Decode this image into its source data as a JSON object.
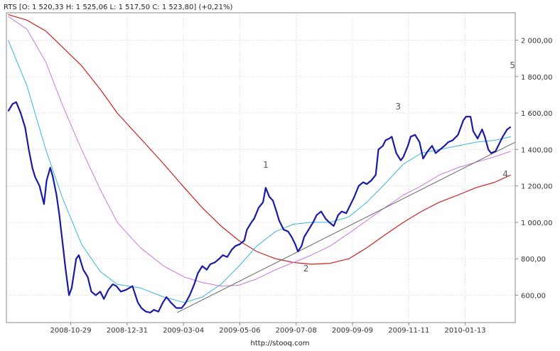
{
  "header": {
    "label": "RTS [O: 1 520,33  H: 1 525,06  L: 1 517,50  C: 1 523,80] (+0,21%)"
  },
  "footer": {
    "source": "http://stooq.com"
  },
  "chart_data": {
    "type": "line",
    "title": "",
    "xlabel": "",
    "ylabel": "",
    "ylim": [
      450,
      2150
    ],
    "xlim": [
      "2008-08-18",
      "2010-03-10"
    ],
    "y_axis_position": "right",
    "grid": true,
    "y_ticks": [
      600,
      800,
      1000,
      1200,
      1400,
      1600,
      1800,
      2000
    ],
    "y_tick_labels": [
      "600,00",
      "800,00",
      "1 000,00",
      "1 200,00",
      "1 400,00",
      "1 600,00",
      "1 800,00",
      "2 000,00"
    ],
    "x_ticks": [
      "2008-10-29",
      "2008-12-31",
      "2009-03-04",
      "2009-05-06",
      "2009-07-08",
      "2009-09-09",
      "2009-11-11",
      "2010-01-13"
    ],
    "colors": {
      "price": "#1a1aa8",
      "ma_fast": "#3ab4e0",
      "ma_mid": "#cc77dd",
      "ma_slow": "#cc2222",
      "trendline": "#666666"
    },
    "series": [
      {
        "id": "price",
        "points": [
          [
            "2008-08-20",
            1610
          ],
          [
            "2008-08-25",
            1650
          ],
          [
            "2008-08-29",
            1660
          ],
          [
            "2008-09-03",
            1600
          ],
          [
            "2008-09-08",
            1520
          ],
          [
            "2008-09-12",
            1400
          ],
          [
            "2008-09-16",
            1300
          ],
          [
            "2008-09-19",
            1250
          ],
          [
            "2008-09-24",
            1200
          ],
          [
            "2008-09-29",
            1100
          ],
          [
            "2008-10-02",
            1230
          ],
          [
            "2008-10-06",
            1300
          ],
          [
            "2008-10-09",
            1250
          ],
          [
            "2008-10-13",
            1150
          ],
          [
            "2008-10-16",
            1050
          ],
          [
            "2008-10-20",
            880
          ],
          [
            "2008-10-23",
            750
          ],
          [
            "2008-10-27",
            600
          ],
          [
            "2008-10-30",
            640
          ],
          [
            "2008-11-04",
            800
          ],
          [
            "2008-11-07",
            820
          ],
          [
            "2008-11-12",
            740
          ],
          [
            "2008-11-17",
            700
          ],
          [
            "2008-11-21",
            620
          ],
          [
            "2008-11-26",
            600
          ],
          [
            "2008-12-01",
            620
          ],
          [
            "2008-12-05",
            580
          ],
          [
            "2008-12-10",
            630
          ],
          [
            "2008-12-15",
            660
          ],
          [
            "2008-12-19",
            650
          ],
          [
            "2008-12-24",
            620
          ],
          [
            "2008-12-30",
            630
          ],
          [
            "2009-01-06",
            650
          ],
          [
            "2009-01-12",
            560
          ],
          [
            "2009-01-16",
            530
          ],
          [
            "2009-01-21",
            510
          ],
          [
            "2009-01-26",
            505
          ],
          [
            "2009-01-30",
            520
          ],
          [
            "2009-02-04",
            510
          ],
          [
            "2009-02-09",
            560
          ],
          [
            "2009-02-13",
            590
          ],
          [
            "2009-02-18",
            560
          ],
          [
            "2009-02-24",
            530
          ],
          [
            "2009-03-02",
            530
          ],
          [
            "2009-03-06",
            555
          ],
          [
            "2009-03-11",
            600
          ],
          [
            "2009-03-16",
            660
          ],
          [
            "2009-03-20",
            720
          ],
          [
            "2009-03-25",
            760
          ],
          [
            "2009-03-30",
            740
          ],
          [
            "2009-04-03",
            770
          ],
          [
            "2009-04-08",
            780
          ],
          [
            "2009-04-13",
            800
          ],
          [
            "2009-04-17",
            820
          ],
          [
            "2009-04-22",
            810
          ],
          [
            "2009-04-27",
            850
          ],
          [
            "2009-05-01",
            870
          ],
          [
            "2009-05-06",
            880
          ],
          [
            "2009-05-11",
            900
          ],
          [
            "2009-05-14",
            960
          ],
          [
            "2009-05-19",
            1000
          ],
          [
            "2009-05-22",
            1020
          ],
          [
            "2009-05-27",
            1080
          ],
          [
            "2009-06-01",
            1110
          ],
          [
            "2009-06-04",
            1190
          ],
          [
            "2009-06-08",
            1140
          ],
          [
            "2009-06-12",
            1120
          ],
          [
            "2009-06-16",
            1060
          ],
          [
            "2009-06-19",
            1010
          ],
          [
            "2009-06-24",
            960
          ],
          [
            "2009-06-29",
            950
          ],
          [
            "2009-07-03",
            920
          ],
          [
            "2009-07-07",
            880
          ],
          [
            "2009-07-10",
            840
          ],
          [
            "2009-07-14",
            870
          ],
          [
            "2009-07-17",
            920
          ],
          [
            "2009-07-22",
            960
          ],
          [
            "2009-07-27",
            1000
          ],
          [
            "2009-07-31",
            1040
          ],
          [
            "2009-08-05",
            1060
          ],
          [
            "2009-08-10",
            1020
          ],
          [
            "2009-08-14",
            1000
          ],
          [
            "2009-08-19",
            980
          ],
          [
            "2009-08-24",
            1040
          ],
          [
            "2009-08-28",
            1060
          ],
          [
            "2009-09-02",
            1050
          ],
          [
            "2009-09-07",
            1100
          ],
          [
            "2009-09-11",
            1140
          ],
          [
            "2009-09-16",
            1200
          ],
          [
            "2009-09-21",
            1220
          ],
          [
            "2009-09-25",
            1210
          ],
          [
            "2009-09-30",
            1230
          ],
          [
            "2009-10-05",
            1260
          ],
          [
            "2009-10-08",
            1400
          ],
          [
            "2009-10-13",
            1420
          ],
          [
            "2009-10-16",
            1450
          ],
          [
            "2009-10-20",
            1460
          ],
          [
            "2009-10-23",
            1470
          ],
          [
            "2009-10-28",
            1380
          ],
          [
            "2009-11-02",
            1340
          ],
          [
            "2009-11-05",
            1360
          ],
          [
            "2009-11-10",
            1420
          ],
          [
            "2009-11-13",
            1470
          ],
          [
            "2009-11-18",
            1480
          ],
          [
            "2009-11-23",
            1440
          ],
          [
            "2009-11-27",
            1350
          ],
          [
            "2009-12-02",
            1390
          ],
          [
            "2009-12-07",
            1420
          ],
          [
            "2009-12-11",
            1380
          ],
          [
            "2009-12-16",
            1400
          ],
          [
            "2009-12-21",
            1420
          ],
          [
            "2009-12-25",
            1440
          ],
          [
            "2009-12-30",
            1450
          ],
          [
            "2010-01-05",
            1480
          ],
          [
            "2010-01-11",
            1560
          ],
          [
            "2010-01-14",
            1580
          ],
          [
            "2010-01-19",
            1580
          ],
          [
            "2010-01-22",
            1500
          ],
          [
            "2010-01-27",
            1460
          ],
          [
            "2010-02-01",
            1510
          ],
          [
            "2010-02-04",
            1470
          ],
          [
            "2010-02-08",
            1400
          ],
          [
            "2010-02-11",
            1380
          ],
          [
            "2010-02-16",
            1390
          ],
          [
            "2010-02-19",
            1420
          ],
          [
            "2010-02-24",
            1470
          ],
          [
            "2010-03-01",
            1510
          ],
          [
            "2010-03-05",
            1523.8
          ]
        ]
      },
      {
        "id": "ma_fast",
        "points": [
          [
            "2008-08-20",
            2000
          ],
          [
            "2008-09-10",
            1750
          ],
          [
            "2008-10-01",
            1400
          ],
          [
            "2008-10-20",
            1130
          ],
          [
            "2008-11-10",
            880
          ],
          [
            "2008-12-01",
            730
          ],
          [
            "2008-12-20",
            660
          ],
          [
            "2009-01-15",
            640
          ],
          [
            "2009-02-10",
            590
          ],
          [
            "2009-03-05",
            560
          ],
          [
            "2009-03-25",
            590
          ],
          [
            "2009-04-15",
            660
          ],
          [
            "2009-05-05",
            760
          ],
          [
            "2009-05-25",
            870
          ],
          [
            "2009-06-15",
            950
          ],
          [
            "2009-07-05",
            990
          ],
          [
            "2009-07-25",
            1000
          ],
          [
            "2009-08-15",
            1000
          ],
          [
            "2009-09-05",
            1030
          ],
          [
            "2009-09-25",
            1110
          ],
          [
            "2009-10-15",
            1210
          ],
          [
            "2009-11-05",
            1320
          ],
          [
            "2009-11-25",
            1380
          ],
          [
            "2009-12-15",
            1400
          ],
          [
            "2010-01-05",
            1420
          ],
          [
            "2010-01-25",
            1440
          ],
          [
            "2010-02-15",
            1450
          ],
          [
            "2010-03-05",
            1470
          ]
        ]
      },
      {
        "id": "ma_mid",
        "points": [
          [
            "2008-08-20",
            2130
          ],
          [
            "2008-09-10",
            2060
          ],
          [
            "2008-10-01",
            1880
          ],
          [
            "2008-10-20",
            1640
          ],
          [
            "2008-11-10",
            1400
          ],
          [
            "2008-12-01",
            1180
          ],
          [
            "2008-12-20",
            1000
          ],
          [
            "2009-01-15",
            860
          ],
          [
            "2009-02-10",
            760
          ],
          [
            "2009-03-05",
            700
          ],
          [
            "2009-03-25",
            670
          ],
          [
            "2009-04-15",
            650
          ],
          [
            "2009-05-05",
            655
          ],
          [
            "2009-05-25",
            690
          ],
          [
            "2009-06-15",
            740
          ],
          [
            "2009-07-05",
            780
          ],
          [
            "2009-07-25",
            820
          ],
          [
            "2009-08-15",
            870
          ],
          [
            "2009-09-05",
            940
          ],
          [
            "2009-09-25",
            1010
          ],
          [
            "2009-10-15",
            1080
          ],
          [
            "2009-11-05",
            1150
          ],
          [
            "2009-11-25",
            1200
          ],
          [
            "2009-12-15",
            1260
          ],
          [
            "2010-01-05",
            1300
          ],
          [
            "2010-01-25",
            1330
          ],
          [
            "2010-02-15",
            1360
          ],
          [
            "2010-03-05",
            1390
          ]
        ]
      },
      {
        "id": "ma_slow",
        "points": [
          [
            "2008-08-20",
            2140
          ],
          [
            "2008-09-10",
            2110
          ],
          [
            "2008-10-01",
            2050
          ],
          [
            "2008-10-20",
            1960
          ],
          [
            "2008-11-10",
            1860
          ],
          [
            "2008-12-01",
            1730
          ],
          [
            "2008-12-20",
            1600
          ],
          [
            "2009-01-15",
            1460
          ],
          [
            "2009-02-10",
            1320
          ],
          [
            "2009-03-05",
            1190
          ],
          [
            "2009-03-25",
            1080
          ],
          [
            "2009-04-15",
            980
          ],
          [
            "2009-05-05",
            900
          ],
          [
            "2009-05-25",
            840
          ],
          [
            "2009-06-15",
            800
          ],
          [
            "2009-07-05",
            780
          ],
          [
            "2009-07-25",
            770
          ],
          [
            "2009-08-15",
            775
          ],
          [
            "2009-09-05",
            800
          ],
          [
            "2009-09-25",
            860
          ],
          [
            "2009-10-15",
            930
          ],
          [
            "2009-11-05",
            1000
          ],
          [
            "2009-11-25",
            1060
          ],
          [
            "2009-12-15",
            1110
          ],
          [
            "2010-01-05",
            1150
          ],
          [
            "2010-01-25",
            1190
          ],
          [
            "2010-02-15",
            1220
          ],
          [
            "2010-03-05",
            1260
          ]
        ]
      },
      {
        "id": "trendline",
        "points": [
          [
            "2009-02-25",
            505
          ],
          [
            "2010-03-10",
            1440
          ]
        ]
      }
    ],
    "annotations": [
      {
        "text": "1",
        "x": "2009-06-04",
        "y": 1300
      },
      {
        "text": "2",
        "x": "2009-07-19",
        "y": 730
      },
      {
        "text": "3",
        "x": "2009-10-30",
        "y": 1620
      },
      {
        "text": "4",
        "x": "2010-02-27",
        "y": 1250
      },
      {
        "text": "5",
        "x": "2010-03-07",
        "y": 1845
      }
    ]
  }
}
